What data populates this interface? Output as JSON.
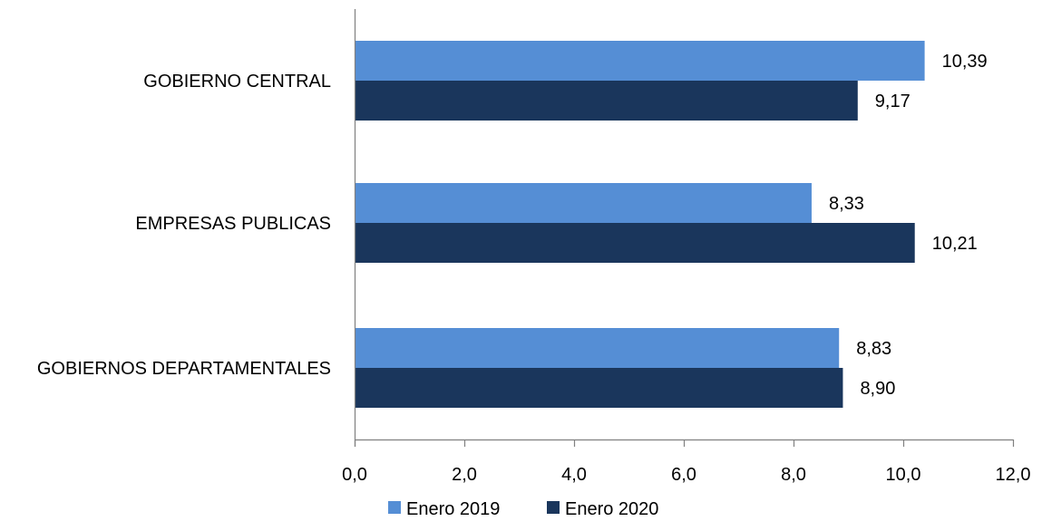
{
  "chart_data": {
    "type": "bar",
    "orientation": "horizontal",
    "categories": [
      "GOBIERNO CENTRAL",
      "EMPRESAS PUBLICAS",
      "GOBIERNOS DEPARTAMENTALES"
    ],
    "series": [
      {
        "name": "Enero 2019",
        "values": [
          10.39,
          8.33,
          8.83
        ],
        "labels": [
          "10,39",
          "8,33",
          "8,83"
        ],
        "color": "#558ED5"
      },
      {
        "name": "Enero 2020",
        "values": [
          9.17,
          10.21,
          8.9
        ],
        "labels": [
          "9,17",
          "10,21",
          "8,90"
        ],
        "color": "#1A365C"
      }
    ],
    "xlim": [
      0,
      12
    ],
    "xticks": [
      0,
      2,
      4,
      6,
      8,
      10,
      12
    ],
    "xtick_labels": [
      "0,0",
      "2,0",
      "4,0",
      "6,0",
      "8,0",
      "10,0",
      "12,0"
    ],
    "title": "",
    "xlabel": "",
    "ylabel": "",
    "grid": false,
    "legend": "bottom"
  }
}
